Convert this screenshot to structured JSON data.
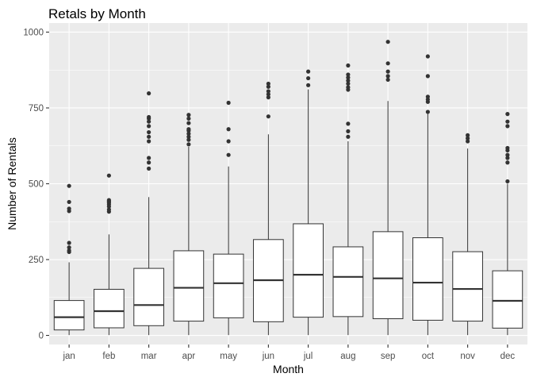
{
  "chart_data": {
    "type": "boxplot",
    "title": "Retals by Month",
    "xlabel": "Month",
    "ylabel": "Number of Rentals",
    "ylim": [
      -30,
      1030
    ],
    "y_ticks": [
      0,
      250,
      500,
      750,
      1000
    ],
    "grid": true,
    "colors": {
      "panel": "#ebebeb",
      "grid": "#ffffff",
      "box_fill": "#ffffff",
      "box_stroke": "#333333",
      "outlier": "#333333",
      "tick_mark": "#333333"
    },
    "categories": [
      "jan",
      "feb",
      "mar",
      "apr",
      "may",
      "jun",
      "jul",
      "aug",
      "sep",
      "oct",
      "nov",
      "dec"
    ],
    "boxes": [
      {
        "label": "jan",
        "min": 1,
        "q1": 18,
        "median": 60,
        "q3": 115,
        "max": 241,
        "outliers": [
          275,
          280,
          290,
          305,
          410,
          418,
          440,
          493
        ]
      },
      {
        "label": "feb",
        "min": 1,
        "q1": 25,
        "median": 80,
        "q3": 152,
        "max": 333,
        "outliers": [
          408,
          415,
          425,
          432,
          438,
          442,
          446,
          527
        ]
      },
      {
        "label": "mar",
        "min": 1,
        "q1": 32,
        "median": 100,
        "q3": 221,
        "max": 456,
        "outliers": [
          550,
          570,
          585,
          640,
          655,
          670,
          690,
          705,
          715,
          720,
          798
        ]
      },
      {
        "label": "apr",
        "min": 1,
        "q1": 47,
        "median": 157,
        "q3": 279,
        "max": 622,
        "outliers": [
          630,
          645,
          655,
          665,
          675,
          680,
          700,
          715,
          727
        ]
      },
      {
        "label": "may",
        "min": 1,
        "q1": 58,
        "median": 172,
        "q3": 268,
        "max": 557,
        "outliers": [
          595,
          640,
          680,
          767
        ]
      },
      {
        "label": "jun",
        "min": 1,
        "q1": 45,
        "median": 182,
        "q3": 316,
        "max": 663,
        "outliers": [
          722,
          785,
          795,
          805,
          820,
          830
        ]
      },
      {
        "label": "jul",
        "min": 1,
        "q1": 60,
        "median": 200,
        "q3": 368,
        "max": 811,
        "outliers": [
          825,
          848,
          870
        ]
      },
      {
        "label": "aug",
        "min": 1,
        "q1": 62,
        "median": 193,
        "q3": 292,
        "max": 640,
        "outliers": [
          655,
          673,
          698,
          810,
          818,
          830,
          840,
          850,
          860,
          890
        ]
      },
      {
        "label": "sep",
        "min": 1,
        "q1": 55,
        "median": 188,
        "q3": 342,
        "max": 773,
        "outliers": [
          843,
          855,
          870,
          897,
          968
        ]
      },
      {
        "label": "oct",
        "min": 1,
        "q1": 50,
        "median": 174,
        "q3": 322,
        "max": 734,
        "outliers": [
          737,
          770,
          778,
          787,
          855,
          920
        ]
      },
      {
        "label": "nov",
        "min": 1,
        "q1": 47,
        "median": 153,
        "q3": 276,
        "max": 616,
        "outliers": [
          640,
          650,
          660
        ]
      },
      {
        "label": "dec",
        "min": 1,
        "q1": 24,
        "median": 114,
        "q3": 213,
        "max": 500,
        "outliers": [
          508,
          570,
          585,
          595,
          610,
          618,
          690,
          705,
          730
        ]
      }
    ]
  }
}
